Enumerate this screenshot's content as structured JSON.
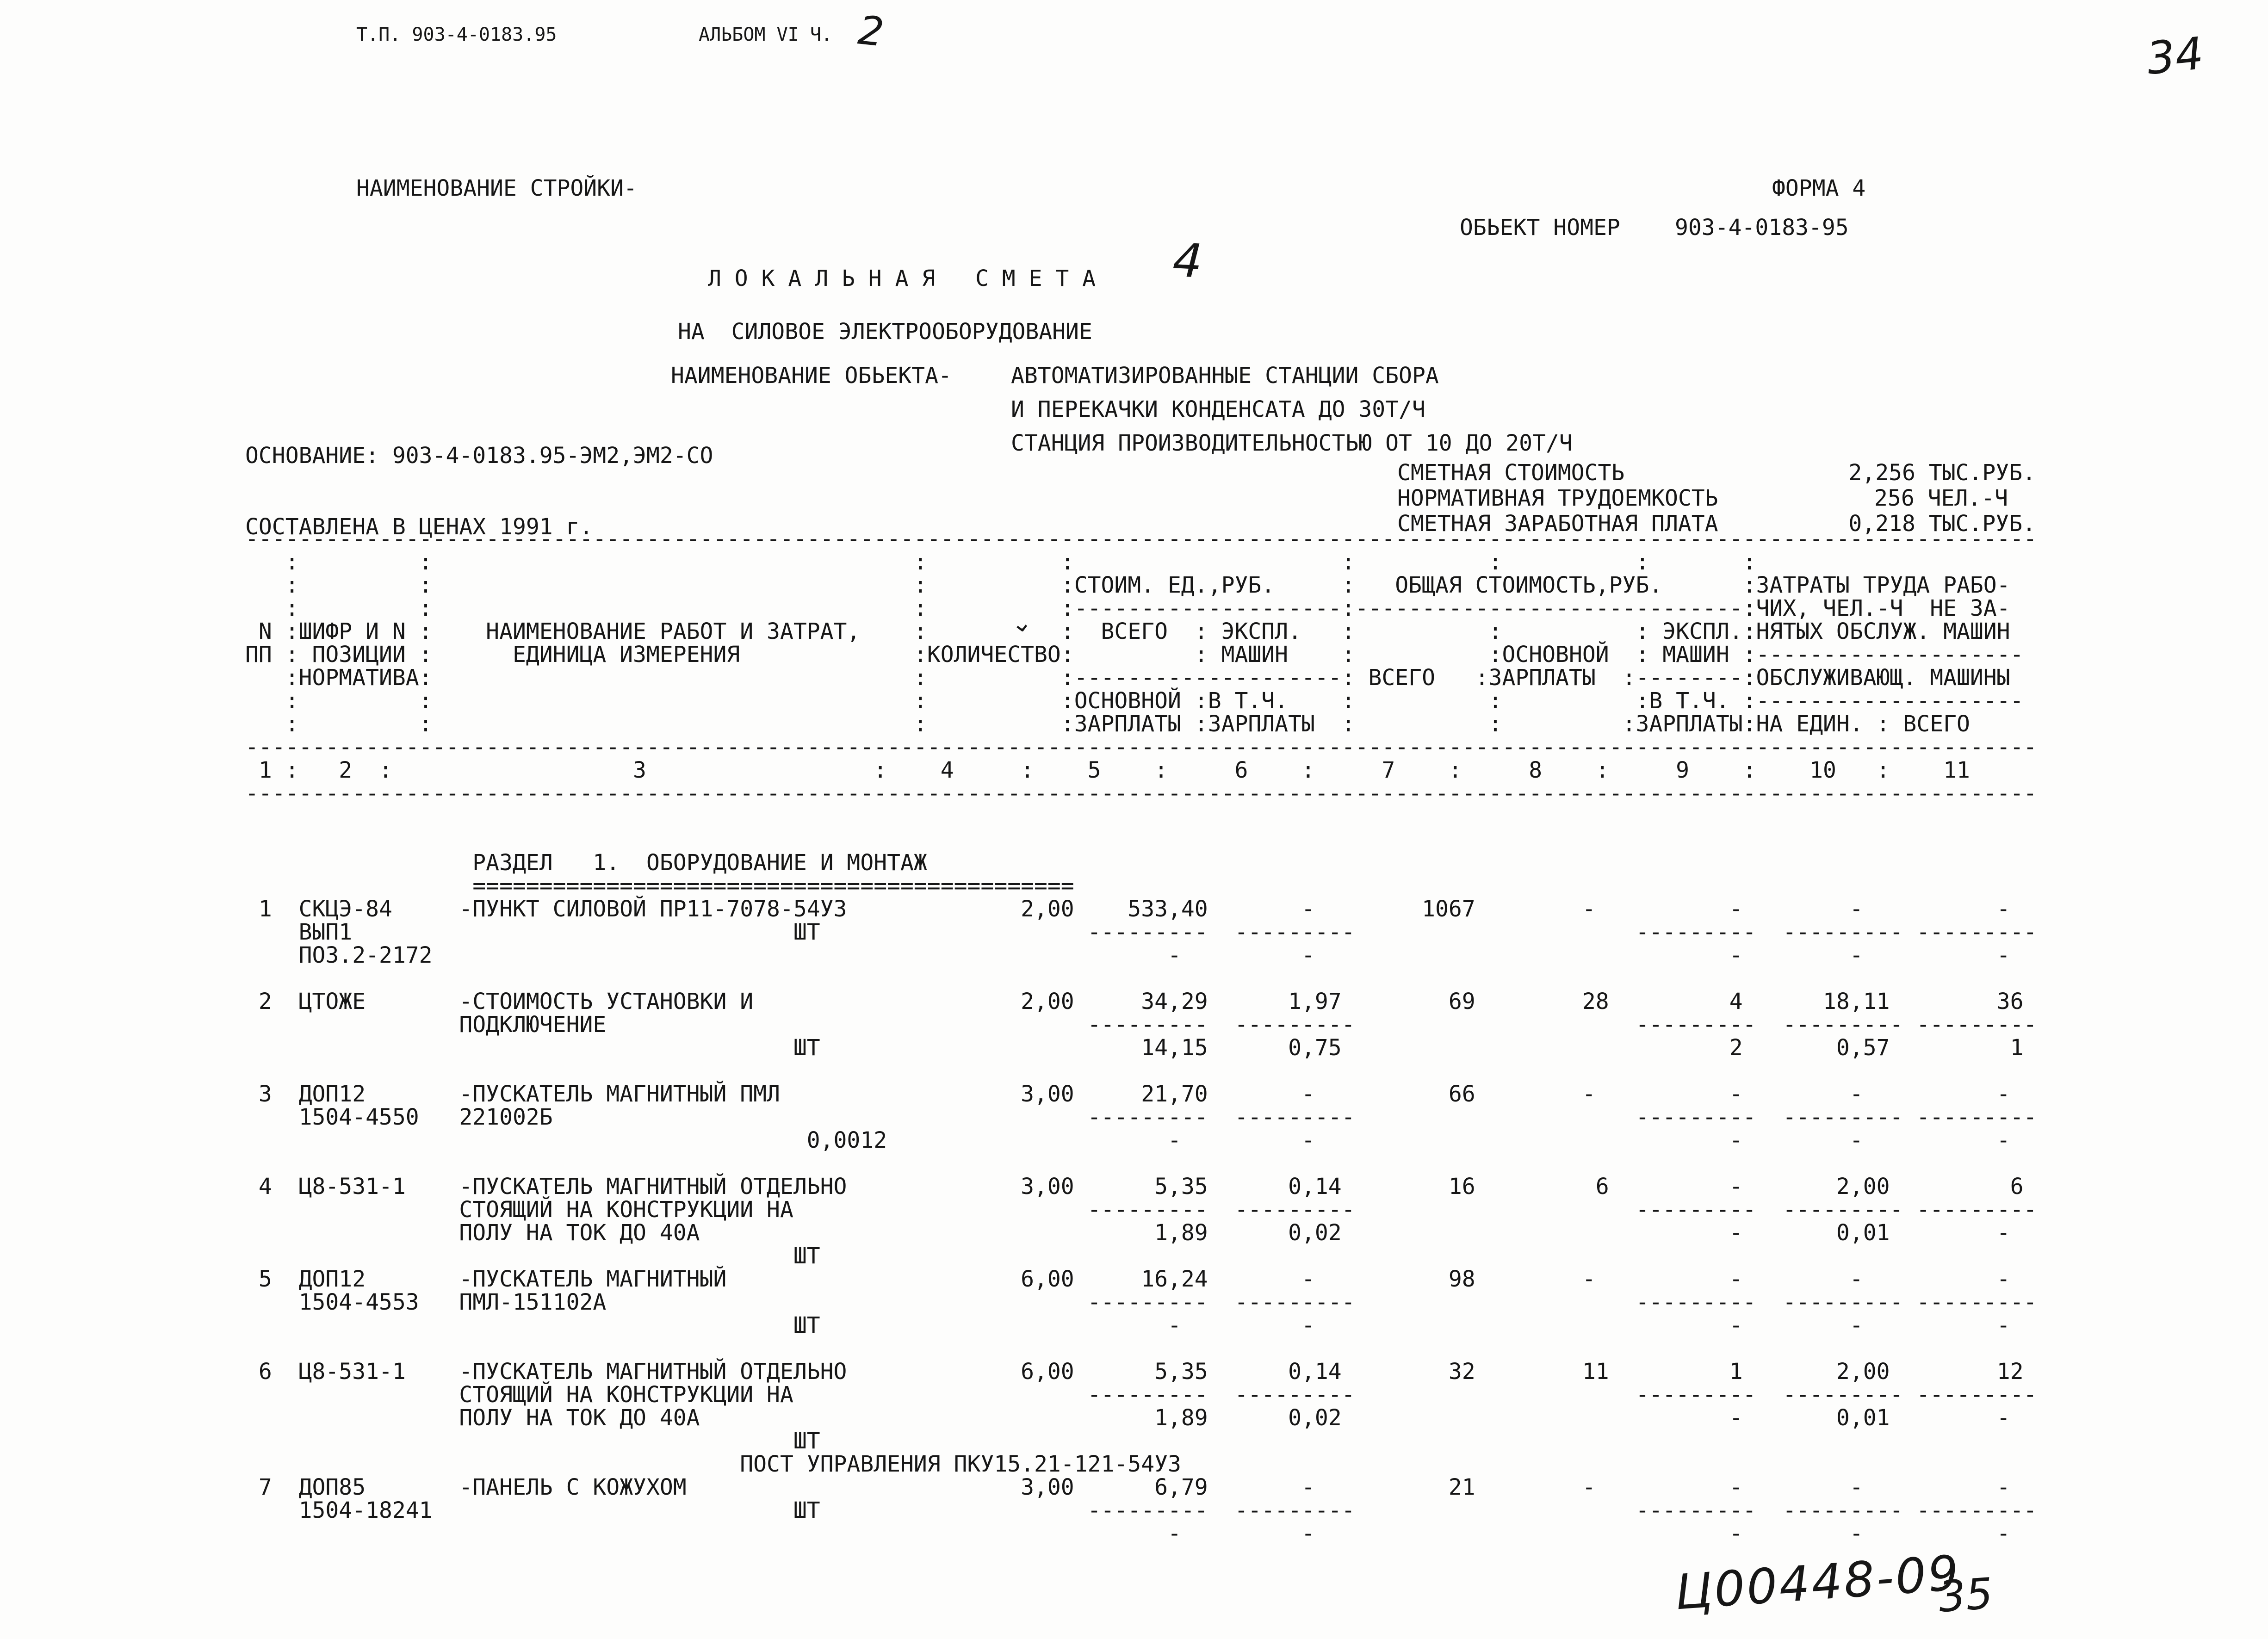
{
  "header": {
    "tp_number": "Т.П. 903-4-0183.95",
    "album": "АЛЬБОМ VI Ч.",
    "album_part_handwritten": "2",
    "page_number_handwritten": "34",
    "stroika_label": "НАИМЕНОВАНИЕ СТРОЙКИ-",
    "forma": "ФОРМА 4",
    "object_number_label": "ОБЬЕКТ НОМЕР",
    "object_number": "903-4-0183-95"
  },
  "title": {
    "main": "Л О К А Л Ь Н А Я   С М Е Т А",
    "number_handwritten": "4",
    "subtitle": "НА  СИЛОВОЕ ЭЛЕКТРООБОРУДОВАНИЕ",
    "object_label": "НАИМЕНОВАНИЕ ОБЬЕКТА-",
    "object_line1": "АВТОМАТИЗИРОВАННЫЕ СТАНЦИИ СБОРА",
    "object_line2": "И ПЕРЕКАЧКИ КОНДЕНСАТА ДО 30Т/Ч",
    "object_line3": "СТАНЦИЯ ПРОИЗВОДИТЕЛЬНОСТЬЮ ОТ 10 ДО 20Т/Ч",
    "basis": "ОСНОВАНИЕ: 903-4-0183.95-ЭМ2,ЭМ2-СО",
    "prices_note": "СОСТАВЛЕНА В ЦЕНАХ 1991 г.",
    "check_mark": "⌄"
  },
  "summary": {
    "rows": [
      {
        "label": "СМЕТНАЯ СТОИМОСТЬ",
        "value": "2,256 ТЫС.РУБ."
      },
      {
        "label": "НОРМАТИВНАЯ ТРУДОЕМКОСТЬ",
        "value": "256 ЧЕЛ.-Ч"
      },
      {
        "label": "СМЕТНАЯ ЗАРАБОТНАЯ ПЛАТА",
        "value": "0,218 ТЫС.РУБ."
      }
    ]
  },
  "table_data": {
    "type": "table",
    "section_title": "РАЗДЕЛ 1. ОБОРУДОВАНИЕ И МОНТАЖ",
    "columns": [
      "N ПП",
      "ШИФР И N ПОЗИЦИИ НОРМАТИВА",
      "НАИМЕНОВАНИЕ РАБОТ И ЗАТРАТ, ЕДИНИЦА ИЗМЕРЕНИЯ",
      "КОЛИЧЕСТВО",
      "СТОИМ. ЕД.,РУБ. ВСЕГО / ОСНОВНОЙ ЗАРПЛАТЫ",
      "СТОИМ. ЕД.,РУБ. ЭКСПЛ. МАШИН / В Т.Ч. ЗАРПЛАТЫ",
      "ОБЩАЯ СТОИМОСТЬ,РУБ. ВСЕГО",
      "ОБЩАЯ СТОИМОСТЬ,РУБ. ОСНОВНОЙ ЗАРПЛАТЫ",
      "ОБЩАЯ СТОИМОСТЬ,РУБ. ЭКСПЛ. МАШИН / В Т.Ч. ЗАРПЛАТЫ",
      "ЗАТРАТЫ ТРУДА РАБОЧИХ, ЧЕЛ.-Ч НЕ ЗАНЯТЫХ ОБСЛУЖ. МАШИН / ОБСЛУЖИВАЮЩ. МАШИНЫ — НА ЕДИН.",
      "ЗАТРАТЫ ТРУДА — ВСЕГО"
    ],
    "rows": [
      {
        "pp": "1",
        "code": [
          "СКЦЭ-84",
          "ВЫП1",
          "ПОЗ.2-2172"
        ],
        "name": [
          "-ПУНКТ СИЛОВОЙ ПР11-7078-54У3",
          "ШТ"
        ],
        "qty": "2,00",
        "unit_total": "533,40",
        "unit_total2": "-",
        "unit_expl": "-",
        "unit_expl2": "-",
        "total": "1067",
        "osn_zp": "-",
        "expl": "-",
        "expl2": "-",
        "na_edin": "-",
        "na_edin2": "-",
        "vsego": "-",
        "vsego2": "-"
      },
      {
        "pp": "2",
        "code": [
          "ЦТОЖЕ"
        ],
        "name": [
          "-СТОИМОСТЬ УСТАНОВКИ И",
          "ПОДКЛЮЧЕНИЕ",
          "ШТ"
        ],
        "qty": "2,00",
        "unit_total": "34,29",
        "unit_total2": "14,15",
        "unit_expl": "1,97",
        "unit_expl2": "0,75",
        "total": "69",
        "osn_zp": "28",
        "expl": "4",
        "expl2": "2",
        "na_edin": "18,11",
        "na_edin2": "0,57",
        "vsego": "36",
        "vsego2": "1"
      },
      {
        "pp": "3",
        "code": [
          "ДОП12",
          "1504-4550"
        ],
        "name": [
          "-ПУСКАТЕЛЬ МАГНИТНЫЙ ПМЛ",
          "221002Б",
          "0,0012"
        ],
        "qty": "3,00",
        "unit_total": "21,70",
        "unit_total2": "-",
        "unit_expl": "-",
        "unit_expl2": "-",
        "total": "66",
        "osn_zp": "-",
        "expl": "-",
        "expl2": "-",
        "na_edin": "-",
        "na_edin2": "-",
        "vsego": "-",
        "vsego2": "-"
      },
      {
        "pp": "4",
        "code": [
          "Ц8-531-1"
        ],
        "name": [
          "-ПУСКАТЕЛЬ МАГНИТНЫЙ ОТДЕЛЬНО",
          "СТОЯЩИЙ НА КОНСТРУКЦИИ НА",
          "ПОЛУ НА ТОК ДО 40А",
          "ШТ"
        ],
        "qty": "3,00",
        "unit_total": "5,35",
        "unit_total2": "1,89",
        "unit_expl": "0,14",
        "unit_expl2": "0,02",
        "total": "16",
        "osn_zp": "6",
        "expl": "-",
        "expl2": "-",
        "na_edin": "2,00",
        "na_edin2": "0,01",
        "vsego": "6",
        "vsego2": "-"
      },
      {
        "pp": "5",
        "code": [
          "ДОП12",
          "1504-4553"
        ],
        "name": [
          "-ПУСКАТЕЛЬ МАГНИТНЫЙ",
          "ПМЛ-151102А",
          "ШТ"
        ],
        "qty": "6,00",
        "unit_total": "16,24",
        "unit_total2": "-",
        "unit_expl": "-",
        "unit_expl2": "-",
        "total": "98",
        "osn_zp": "-",
        "expl": "-",
        "expl2": "-",
        "na_edin": "-",
        "na_edin2": "-",
        "vsego": "-",
        "vsego2": "-"
      },
      {
        "pp": "6",
        "code": [
          "Ц8-531-1"
        ],
        "name": [
          "-ПУСКАТЕЛЬ МАГНИТНЫЙ ОТДЕЛЬНО",
          "СТОЯЩИЙ НА КОНСТРУКЦИИ НА",
          "ПОЛУ НА ТОК ДО 40А",
          "ШТ"
        ],
        "qty": "6,00",
        "unit_total": "5,35",
        "unit_total2": "1,89",
        "unit_expl": "0,14",
        "unit_expl2": "0,02",
        "total": "32",
        "osn_zp": "11",
        "expl": "1",
        "expl2": "-",
        "na_edin": "2,00",
        "na_edin2": "0,01",
        "vsego": "12",
        "vsego2": "-"
      },
      {
        "pp": "7",
        "code": [
          "ДОП85",
          "1504-18241"
        ],
        "name": [
          "ПОСТ УПРАВЛЕНИЯ ПКУ15.21-121-54У3",
          "-ПАНЕЛЬ С КОЖУХОМ",
          "ШТ"
        ],
        "qty": "3,00",
        "unit_total": "6,79",
        "unit_total2": "-",
        "unit_expl": "-",
        "unit_expl2": "-",
        "total": "21",
        "osn_zp": "-",
        "expl": "-",
        "expl2": "-",
        "na_edin": "-",
        "na_edin2": "-",
        "vsego": "-",
        "vsego2": "-"
      }
    ]
  },
  "pre": {
    "lines": [
      "--------------------------------------------------------------------------------------------------------------------------------------",
      "   :         :                                    :          :                    :          :          :       :",
      "   :         :                                    :          :СТОИМ. ЕД.,РУБ.     :   ОБЩАЯ СТОИМОСТЬ,РУБ.      :ЗАТРАТЫ ТРУДА РАБО-",
      "   :         :                                    :          :--------------------:-----------------------------:ЧИХ, ЧЕЛ.-Ч  НЕ ЗА-",
      " N :ШИФР И N :    НАИМЕНОВАНИЕ РАБОТ И ЗАТРАТ,    :          :  ВСЕГО  : ЭКСПЛ.   :          :          : ЭКСПЛ.:НЯТЫХ ОБСЛУЖ. МАШИН",
      "ПП : ПОЗИЦИИ :      ЕДИНИЦА ИЗМЕРЕНИЯ             :КОЛИЧЕСТВО:         : МАШИН    :          :ОСНОВНОЙ  : МАШИН :--------------------",
      "   :НОРМАТИВА:                                    :          :--------------------: ВСЕГО   :ЗАРПЛАТЫ  :--------:ОБСЛУЖИВАЮЩ. МАШИНЫ",
      "   :         :                                    :          :ОСНОВНОЙ :В Т.Ч.    :          :          :В Т.Ч. :--------------------",
      "   :         :                                    :          :ЗАРПЛАТЫ :ЗАРПЛАТЫ  :          :         :ЗАРПЛАТЫ:НА ЕДИН. : ВСЕГО",
      "--------------------------------------------------------------------------------------------------------------------------------------",
      " 1 :   2  :                  3                 :    4     :    5    :     6    :     7    :     8    :     9    :    10   :    11",
      "--------------------------------------------------------------------------------------------------------------------------------------",
      "",
      "",
      "                 РАЗДЕЛ   1.  ОБОРУДОВАНИЕ И МОНТАЖ",
      "                 =============================================",
      " 1  СКЦЭ-84     -ПУНКТ СИЛОВОЙ ПР11-7078-54У3             2,00    533,40       -        1067        -          -        -          -",
      "    ВЫП1                                 ШТ                    ---------  ---------                     ---------  --------- ---------",
      "    ПОЗ.2-2172                                                       -         -                               -        -          -",
      "",
      " 2  ЦТОЖЕ       -СТОИМОСТЬ УСТАНОВКИ И                    2,00     34,29      1,97        69        28         4      18,11        36",
      "                ПОДКЛЮЧЕНИЕ                                    ---------  ---------                     ---------  --------- ---------",
      "                                         ШТ                        14,15      0,75                             2       0,57         1",
      "",
      " 3  ДОП12       -ПУСКАТЕЛЬ МАГНИТНЫЙ ПМЛ                  3,00     21,70       -          66        -          -        -          -",
      "    1504-4550   221002Б                                        ---------  ---------                     ---------  --------- ---------",
      "                                          0,0012                     -         -                               -        -          -",
      "",
      " 4  Ц8-531-1    -ПУСКАТЕЛЬ МАГНИТНЫЙ ОТДЕЛЬНО             3,00      5,35      0,14        16         6         -       2,00         6",
      "                СТОЯЩИЙ НА КОНСТРУКЦИИ НА                      ---------  ---------                     ---------  --------- ---------",
      "                ПОЛУ НА ТОК ДО 40А                                  1,89      0,02                             -       0,01        -",
      "                                         ШТ",
      " 5  ДОП12       -ПУСКАТЕЛЬ МАГНИТНЫЙ                      6,00     16,24       -          98        -          -        -          -",
      "    1504-4553   ПМЛ-151102А                                    ---------  ---------                     ---------  --------- ---------",
      "                                         ШТ                          -         -                               -        -          -",
      "",
      " 6  Ц8-531-1    -ПУСКАТЕЛЬ МАГНИТНЫЙ ОТДЕЛЬНО             6,00      5,35      0,14        32        11         1       2,00        12",
      "                СТОЯЩИЙ НА КОНСТРУКЦИИ НА                      ---------  ---------                     ---------  --------- ---------",
      "                ПОЛУ НА ТОК ДО 40А                                  1,89      0,02                             -       0,01        -",
      "                                         ШТ",
      "                                     ПОСТ УПРАВЛЕНИЯ ПКУ15.21-121-54У3",
      " 7  ДОП85       -ПАНЕЛЬ С КОЖУХОМ                         3,00      6,79       -          21        -          -        -          -",
      "    1504-18241                           ШТ                    ---------  ---------                     ---------  --------- ---------",
      "                                                                     -         -                               -        -          -"
    ]
  },
  "footer": {
    "handwritten_code": "Ц00448-09",
    "handwritten_page": "35"
  }
}
